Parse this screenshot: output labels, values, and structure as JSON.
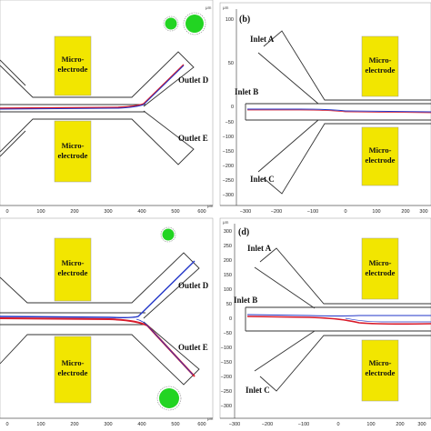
{
  "panels": {
    "a": {
      "electrode_top": [
        "Micro-",
        "electrode"
      ],
      "electrode_bottom": [
        "Micro-",
        "electrode"
      ],
      "outlet_top": "Outlet D",
      "outlet_bottom": "Outlet E",
      "x_ticks": [
        "0",
        "100",
        "200",
        "300",
        "400",
        "500",
        "600"
      ],
      "x_unit": "μm",
      "y_unit": "μm"
    },
    "b": {
      "label": "(b)",
      "inlet_a": "Inlet A",
      "inlet_b": "Inlet B",
      "inlet_c": "Inlet C",
      "electrode_top": [
        "Micro-",
        "electrode"
      ],
      "electrode_bottom": [
        "Micro-",
        "electrode"
      ],
      "x_ticks": [
        "−300",
        "−200",
        "−100",
        "0",
        "100",
        "200",
        "300"
      ],
      "y_ticks": [
        "100",
        "50",
        "0",
        "−50",
        "−100",
        "−150",
        "−200",
        "−250",
        "−300"
      ],
      "x_unit": "μm",
      "y_unit": "μm"
    },
    "c": {
      "electrode_top": [
        "Micro-",
        "electrode"
      ],
      "electrode_bottom": [
        "Micro-",
        "electrode"
      ],
      "outlet_top": "Outlet D",
      "outlet_bottom": "Outlet E",
      "x_ticks": [
        "0",
        "100",
        "200",
        "300",
        "400",
        "500",
        "600"
      ],
      "x_unit": "μm"
    },
    "d": {
      "label": "(d)",
      "inlet_a": "Inlet A",
      "inlet_b": "Inlet B",
      "inlet_c": "Inlet C",
      "electrode_top": [
        "Micro-",
        "electrode"
      ],
      "electrode_bottom": [
        "Micro-",
        "electrode"
      ],
      "x_ticks": [
        "−300",
        "−200",
        "−100",
        "0",
        "100",
        "200",
        "300"
      ],
      "y_ticks": [
        "300",
        "250",
        "200",
        "150",
        "100",
        "50",
        "0",
        "−50",
        "−100",
        "−150",
        "−200",
        "−250",
        "−300"
      ],
      "x_unit": "μm",
      "y_unit": "μm"
    }
  },
  "colors": {
    "electrode": "#f2e600",
    "particle": "#22d422",
    "trace_blue": "#2236c8",
    "trace_red": "#d81a2a",
    "channel": "#333333"
  }
}
